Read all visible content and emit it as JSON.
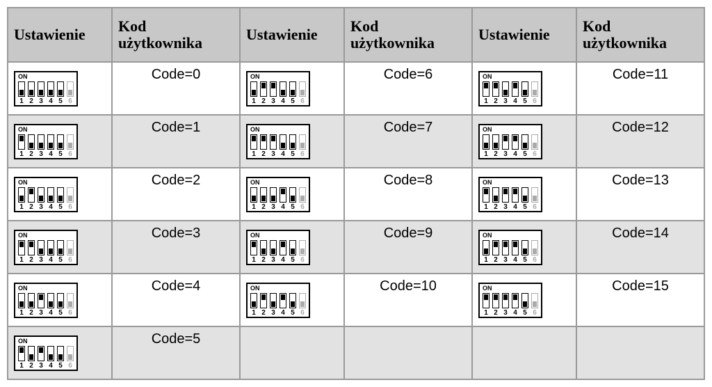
{
  "headers": {
    "setting": "Ustawienie",
    "code": "Kod użytkownika"
  },
  "dip": {
    "on_label": "ON",
    "switch_numbers": [
      "1",
      "2",
      "3",
      "4",
      "5",
      "6"
    ],
    "disabled_index": 5,
    "active_switch_count": 5
  },
  "code_prefix": "Code=",
  "layout": {
    "columns": 3,
    "rows": 6
  },
  "cells": [
    [
      {
        "code": 0,
        "pattern": [
          0,
          0,
          0,
          0,
          0
        ]
      },
      {
        "code": 6,
        "pattern": [
          0,
          1,
          1,
          0,
          0
        ]
      },
      {
        "code": 11,
        "pattern": [
          1,
          1,
          0,
          1,
          0
        ]
      }
    ],
    [
      {
        "code": 1,
        "pattern": [
          1,
          0,
          0,
          0,
          0
        ]
      },
      {
        "code": 7,
        "pattern": [
          1,
          1,
          1,
          0,
          0
        ]
      },
      {
        "code": 12,
        "pattern": [
          0,
          0,
          1,
          1,
          0
        ]
      }
    ],
    [
      {
        "code": 2,
        "pattern": [
          0,
          1,
          0,
          0,
          0
        ]
      },
      {
        "code": 8,
        "pattern": [
          0,
          0,
          0,
          1,
          0
        ]
      },
      {
        "code": 13,
        "pattern": [
          1,
          0,
          1,
          1,
          0
        ]
      }
    ],
    [
      {
        "code": 3,
        "pattern": [
          1,
          1,
          0,
          0,
          0
        ]
      },
      {
        "code": 9,
        "pattern": [
          1,
          0,
          0,
          1,
          0
        ]
      },
      {
        "code": 14,
        "pattern": [
          0,
          1,
          1,
          1,
          0
        ]
      }
    ],
    [
      {
        "code": 4,
        "pattern": [
          0,
          0,
          1,
          0,
          0
        ]
      },
      {
        "code": 10,
        "pattern": [
          0,
          1,
          0,
          1,
          0
        ]
      },
      {
        "code": 15,
        "pattern": [
          1,
          1,
          1,
          1,
          0
        ]
      }
    ],
    [
      {
        "code": 5,
        "pattern": [
          1,
          0,
          1,
          0,
          0
        ]
      },
      null,
      null
    ]
  ],
  "colors": {
    "header_bg": "#c8c8c8",
    "row_alt_bg": "#e2e2e2",
    "row_bg": "#ffffff",
    "border": "#999999",
    "switch_border": "#000000",
    "switch_knob": "#000000",
    "disabled": "#aaaaaa"
  }
}
